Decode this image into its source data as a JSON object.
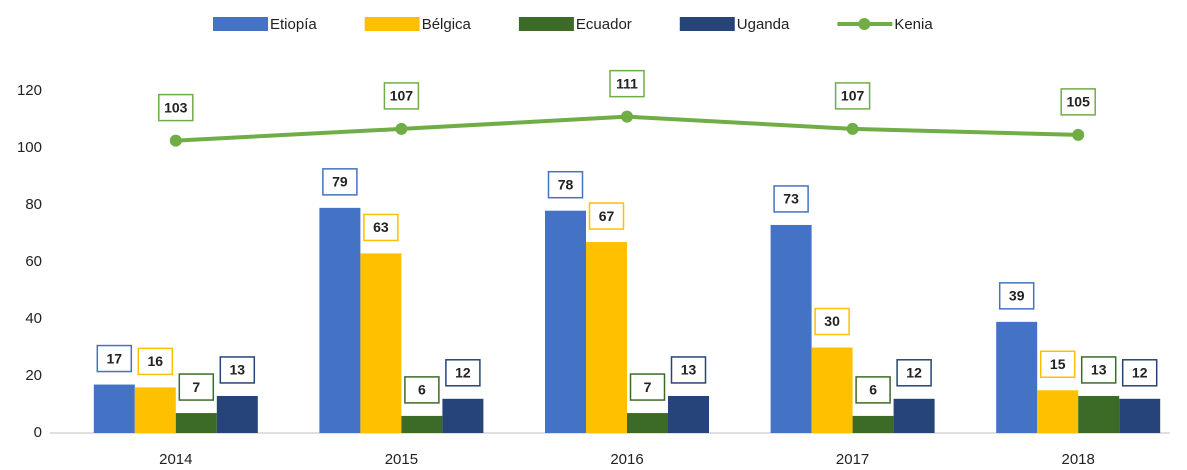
{
  "chart_data": {
    "type": "bar+line",
    "categories": [
      "2014",
      "2015",
      "2016",
      "2017",
      "2018"
    ],
    "series": [
      {
        "name": "Etiopía",
        "type": "bar",
        "color": "#4472c4",
        "values": [
          17,
          79,
          78,
          73,
          39
        ]
      },
      {
        "name": "Bélgica",
        "type": "bar",
        "color": "#ffc000",
        "values": [
          16,
          63,
          67,
          30,
          15
        ]
      },
      {
        "name": "Ecuador",
        "type": "bar",
        "color": "#3b6b26",
        "values": [
          7,
          6,
          7,
          6,
          13
        ]
      },
      {
        "name": "Uganda",
        "type": "bar",
        "color": "#264478",
        "values": [
          13,
          12,
          13,
          12,
          12
        ]
      },
      {
        "name": "Kenia",
        "type": "line",
        "color": "#70ad47",
        "values": [
          102.6,
          106.7,
          111,
          106.7,
          104.6
        ],
        "value_labels": [
          "103",
          "107",
          "111",
          "107",
          "105"
        ]
      }
    ],
    "ylim": [
      0,
      120
    ],
    "yticks": [
      0,
      20,
      40,
      60,
      80,
      100,
      120
    ],
    "grid": false,
    "legend": "top"
  }
}
